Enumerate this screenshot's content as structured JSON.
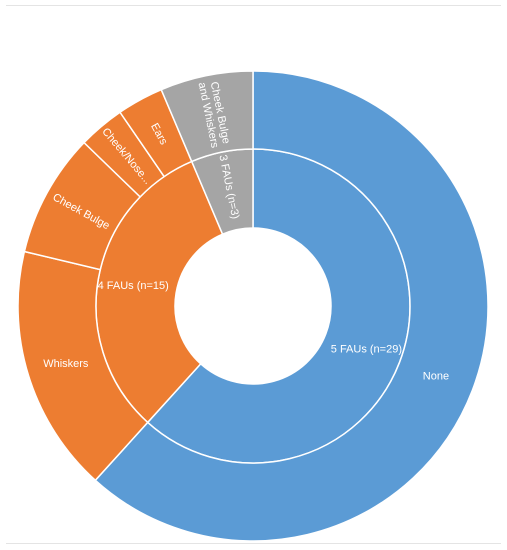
{
  "chart_data": {
    "type": "sunburst",
    "title": "",
    "inner_ring": [
      {
        "label": "5 FAUs (n=29)",
        "value": 29,
        "color": "#5b9bd5"
      },
      {
        "label": "4 FAUs (n=15)",
        "value": 15,
        "color": "#ed7d31"
      },
      {
        "label": "3 FAUs (n=3)",
        "value": 3,
        "color": "#a5a5a5"
      }
    ],
    "outer_ring": [
      {
        "label": "None",
        "parent": "5 FAUs (n=29)",
        "value": 29,
        "color": "#5b9bd5"
      },
      {
        "label": "Whiskers",
        "parent": "4 FAUs (n=15)",
        "value": 8,
        "color": "#ed7d31"
      },
      {
        "label": "Cheek Bulge",
        "parent": "4 FAUs (n=15)",
        "value": 4,
        "color": "#ed7d31"
      },
      {
        "label": "Cheek/Nose...",
        "parent": "4 FAUs (n=15)",
        "value": 1.5,
        "color": "#ed7d31"
      },
      {
        "label": "Ears",
        "parent": "4 FAUs (n=15)",
        "value": 1.5,
        "color": "#ed7d31"
      },
      {
        "label": "Cheek Bulge and Whiskers",
        "parent": "3 FAUs (n=3)",
        "value": 3,
        "color": "#a5a5a5"
      }
    ],
    "legend": "none"
  }
}
